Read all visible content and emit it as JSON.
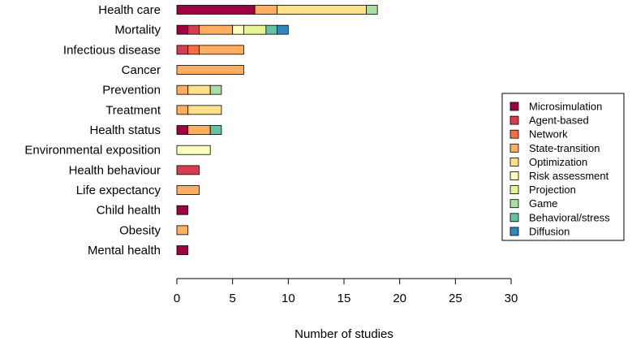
{
  "chart_data": {
    "type": "bar",
    "orientation": "horizontal",
    "stacked": true,
    "categories": [
      "Health care",
      "Mortality",
      "Infectious disease",
      "Cancer",
      "Prevention",
      "Treatment",
      "Health status",
      "Environmental exposition",
      "Health behaviour",
      "Life expectancy",
      "Child health",
      "Obesity",
      "Mental health"
    ],
    "series": [
      {
        "name": "Microsimulation",
        "color": "#9e0142",
        "values": [
          7,
          1,
          0,
          0,
          0,
          0,
          1,
          0,
          0,
          0,
          1,
          0,
          1
        ]
      },
      {
        "name": "Agent-based",
        "color": "#d53e4f",
        "values": [
          0,
          1,
          1,
          0,
          0,
          0,
          0,
          0,
          2,
          0,
          0,
          0,
          0
        ]
      },
      {
        "name": "Network",
        "color": "#f46d43",
        "values": [
          0,
          0,
          1,
          0,
          0,
          0,
          0,
          0,
          0,
          0,
          0,
          0,
          0
        ]
      },
      {
        "name": "State-transition",
        "color": "#fdae61",
        "values": [
          2,
          3,
          4,
          6,
          1,
          1,
          2,
          0,
          0,
          2,
          0,
          1,
          0
        ]
      },
      {
        "name": "Optimization",
        "color": "#fee08b",
        "values": [
          8,
          0,
          0,
          0,
          2,
          3,
          0,
          0,
          0,
          0,
          0,
          0,
          0
        ]
      },
      {
        "name": "Risk assessment",
        "color": "#ffffbf",
        "values": [
          0,
          1,
          0,
          0,
          0,
          0,
          0,
          3,
          0,
          0,
          0,
          0,
          0
        ]
      },
      {
        "name": "Projection",
        "color": "#e6f598",
        "values": [
          0,
          2,
          0,
          0,
          0,
          0,
          0,
          0,
          0,
          0,
          0,
          0,
          0
        ]
      },
      {
        "name": "Game",
        "color": "#abdda4",
        "values": [
          1,
          0,
          0,
          0,
          1,
          0,
          0,
          0,
          0,
          0,
          0,
          0,
          0
        ]
      },
      {
        "name": "Behavioral/stress",
        "color": "#66c2a5",
        "values": [
          0,
          1,
          0,
          0,
          0,
          0,
          1,
          0,
          0,
          0,
          0,
          0,
          0
        ]
      },
      {
        "name": "Diffusion",
        "color": "#3288bd",
        "values": [
          0,
          1,
          0,
          0,
          0,
          0,
          0,
          0,
          0,
          0,
          0,
          0,
          0
        ]
      }
    ],
    "xlabel": "Number of studies",
    "xlim": [
      0,
      30
    ],
    "xticks": [
      "0",
      "5",
      "10",
      "15",
      "20",
      "25",
      "30"
    ],
    "legend_position": "right",
    "grid": false
  }
}
